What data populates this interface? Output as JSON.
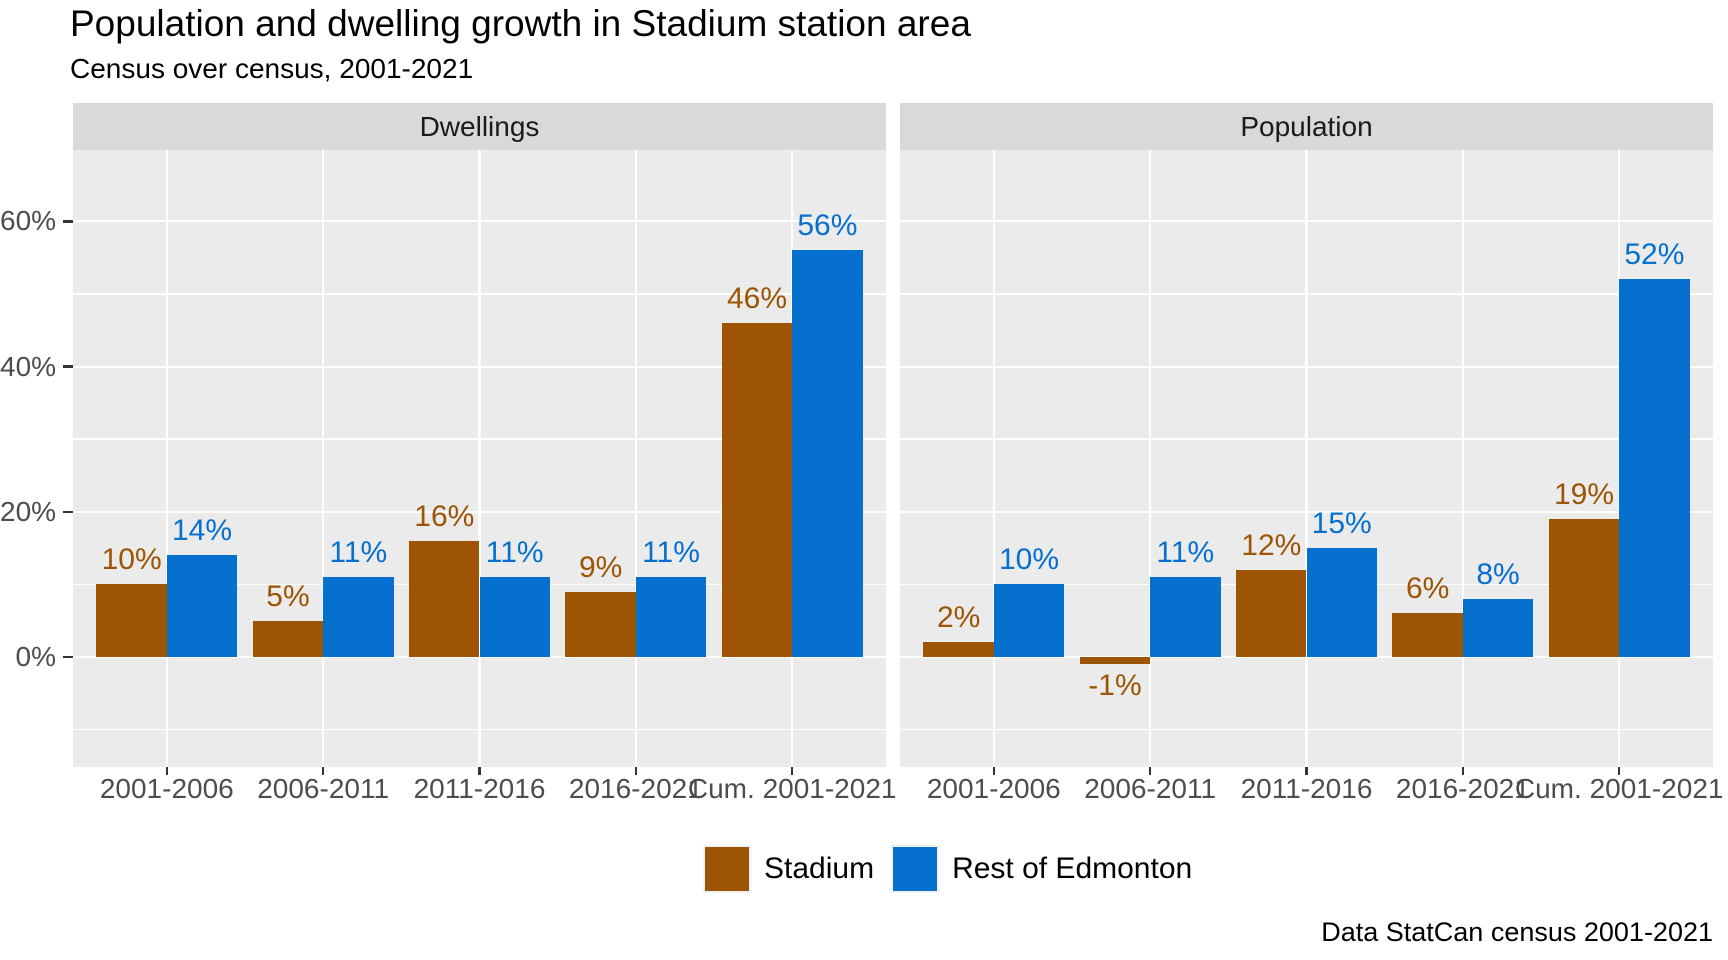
{
  "title": "Population and dwelling growth in Stadium station area",
  "subtitle": "Census over census, 2001-2021",
  "caption": "Data StatCan census 2001-2021",
  "legend": {
    "position": "bottom",
    "items": [
      {
        "label": "Stadium",
        "color": "#9D5405"
      },
      {
        "label": "Rest of Edmonton",
        "color": "#0570CE"
      }
    ]
  },
  "chart_data": {
    "type": "bar",
    "title": "Population and dwelling growth in Stadium station area",
    "subtitle": "Census over census, 2001-2021",
    "caption": "Data StatCan census 2001-2021",
    "categories": [
      "2001-2006",
      "2006-2011",
      "2011-2016",
      "2016-2021",
      "Cum. 2001-2021"
    ],
    "facets": [
      {
        "label": "Dwellings",
        "series": [
          {
            "name": "Stadium",
            "color": "#9D5405",
            "values": [
              10,
              5,
              16,
              9,
              46
            ],
            "labels": [
              "10%",
              "5%",
              "16%",
              "9%",
              "46%"
            ]
          },
          {
            "name": "Rest of Edmonton",
            "color": "#0570CE",
            "values": [
              14,
              11,
              11,
              11,
              56
            ],
            "labels": [
              "14%",
              "11%",
              "11%",
              "11%",
              "56%"
            ]
          }
        ]
      },
      {
        "label": "Population",
        "series": [
          {
            "name": "Stadium",
            "color": "#9D5405",
            "values": [
              2,
              -1,
              12,
              6,
              19
            ],
            "labels": [
              "2%",
              "-1%",
              "12%",
              "6%",
              "19%"
            ]
          },
          {
            "name": "Rest of Edmonton",
            "color": "#0570CE",
            "values": [
              10,
              11,
              15,
              8,
              52
            ],
            "labels": [
              "10%",
              "11%",
              "15%",
              "8%",
              "52%"
            ]
          }
        ]
      }
    ],
    "y_axis": {
      "tick_labels": [
        "0%",
        "20%",
        "40%",
        "60%"
      ],
      "tick_values": [
        0,
        20,
        40,
        60
      ],
      "minor_gridline_values": [
        -10,
        10,
        30,
        50
      ],
      "range_shown": [
        -15,
        70
      ]
    },
    "grid": true,
    "legend_position": "bottom",
    "theme_colors": {
      "panel_background": "#EBEBEB",
      "strip_background": "#D9D9D9",
      "gridline": "#FFFFFF",
      "axis_text": "#4D4D4D",
      "tick_mark": "#333333",
      "strip_text": "#1A1A1A",
      "text": "#000000"
    }
  }
}
